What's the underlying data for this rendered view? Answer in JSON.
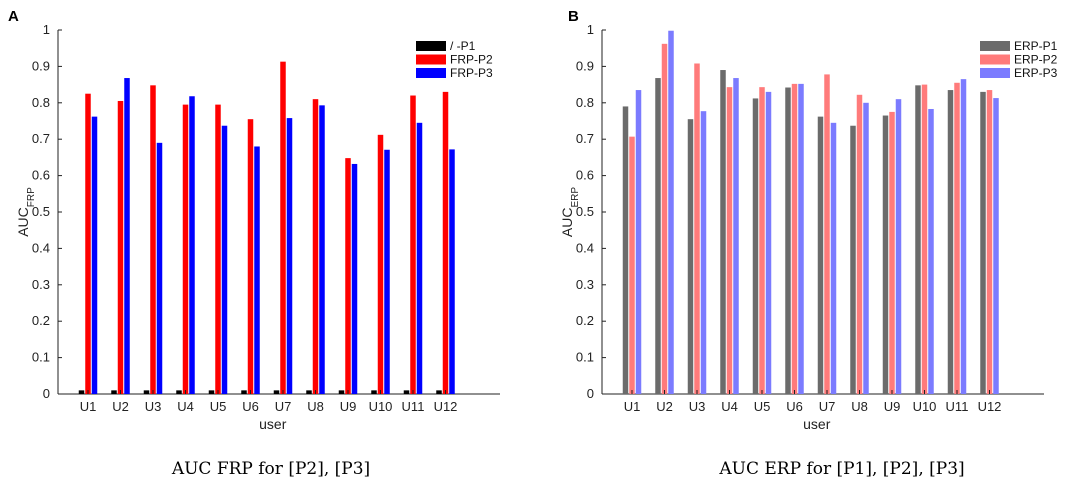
{
  "chart_data": [
    {
      "type": "bar",
      "panel_label": "A",
      "categories": [
        "U1",
        "U2",
        "U3",
        "U4",
        "U5",
        "U6",
        "U7",
        "U8",
        "U9",
        "U10",
        "U11",
        "U12"
      ],
      "series": [
        {
          "name": "/    -P1",
          "color": "#000000",
          "values": [
            0.01,
            0.01,
            0.01,
            0.01,
            0.01,
            0.01,
            0.01,
            0.01,
            0.01,
            0.01,
            0.01,
            0.01
          ]
        },
        {
          "name": "FRP-P2",
          "color": "#ff0000",
          "values": [
            0.825,
            0.805,
            0.848,
            0.795,
            0.795,
            0.755,
            0.913,
            0.81,
            0.648,
            0.712,
            0.82,
            0.83
          ]
        },
        {
          "name": "FRP-P3",
          "color": "#0000ff",
          "values": [
            0.762,
            0.868,
            0.69,
            0.818,
            0.737,
            0.68,
            0.758,
            0.793,
            0.632,
            0.671,
            0.745,
            0.672
          ]
        }
      ],
      "title": "",
      "xlabel": "user",
      "ylabel": "AUC",
      "ylabel_sub": "FRP",
      "ylim": [
        0,
        1
      ],
      "yticks": [
        "0",
        "0.1",
        "0.2",
        "0.3",
        "0.4",
        "0.5",
        "0.6",
        "0.7",
        "0.8",
        "0.9",
        "1"
      ],
      "legend_position": "top-right",
      "caption": "AUC FRP for [P2], [P3]"
    },
    {
      "type": "bar",
      "panel_label": "B",
      "categories": [
        "U1",
        "U2",
        "U3",
        "U4",
        "U5",
        "U6",
        "U7",
        "U8",
        "U9",
        "U10",
        "U11",
        "U12"
      ],
      "series": [
        {
          "name": "ERP-P1",
          "color": "#6b6b6b",
          "values": [
            0.79,
            0.868,
            0.755,
            0.89,
            0.812,
            0.842,
            0.762,
            0.737,
            0.765,
            0.848,
            0.835,
            0.83
          ]
        },
        {
          "name": "ERP-P2",
          "color": "#ff7b7b",
          "values": [
            0.707,
            0.962,
            0.908,
            0.843,
            0.843,
            0.852,
            0.878,
            0.822,
            0.775,
            0.85,
            0.855,
            0.835
          ]
        },
        {
          "name": "ERP-P3",
          "color": "#7b7bff",
          "values": [
            0.835,
            0.998,
            0.777,
            0.868,
            0.83,
            0.852,
            0.745,
            0.8,
            0.81,
            0.783,
            0.865,
            0.813
          ]
        }
      ],
      "title": "",
      "xlabel": "user",
      "ylabel": "AUC",
      "ylabel_sub": "ERP",
      "ylim": [
        0,
        1
      ],
      "yticks": [
        "0",
        "0.1",
        "0.2",
        "0.3",
        "0.4",
        "0.5",
        "0.6",
        "0.7",
        "0.8",
        "0.9",
        "1"
      ],
      "legend_position": "top-right",
      "caption": "AUC ERP for [P1], [P2], [P3]"
    }
  ]
}
